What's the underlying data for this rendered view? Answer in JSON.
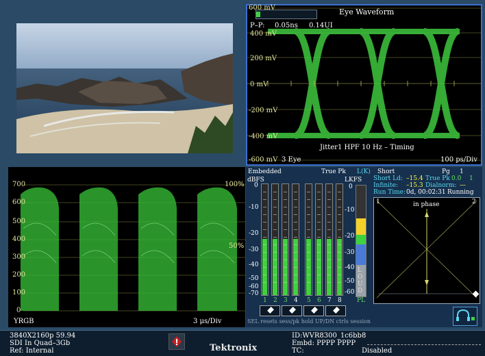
{
  "eye": {
    "title": "Eye Waveform",
    "pp_label": "P–P:",
    "pp_ns": "0.05ns",
    "pp_ui": "0.14UI",
    "y_labels": [
      "600 mV",
      "400 mV",
      "200 mV",
      "0 mV",
      "-200 mV",
      "-400 mV",
      "-600 mV"
    ],
    "filter": "Jitter1 HPF 10 Hz – Timing",
    "mode": "3 Eye",
    "timebase": "100 ps/Div"
  },
  "waveform": {
    "y_labels": [
      "700",
      "600",
      "500",
      "400",
      "300",
      "200",
      "100",
      "0"
    ],
    "pct_100": "100%",
    "pct_50": "50%",
    "mode": "YRGB",
    "timebase": "3 μs/Div"
  },
  "audio": {
    "source": "Embedded",
    "ballistic": "True Pk",
    "lk_label": "L(K):",
    "short_label": "Short",
    "dbfs_unit": "dBFS",
    "lkfs_unit": "LKFS",
    "dbfs_scale": [
      "0",
      "-10",
      "-20",
      "-30",
      "-40",
      "-50",
      "-60",
      "-70"
    ],
    "dbfs_extra": "-60",
    "lkfs_scale": [
      "0",
      "-10",
      "-20",
      "-30",
      "-40",
      "-50",
      "-60"
    ],
    "channels": [
      "1",
      "2",
      "3",
      "4",
      "5",
      "6",
      "7",
      "8"
    ],
    "pl_label": "PL",
    "loud_letters": [
      "L",
      "O",
      "U",
      "D"
    ],
    "footer": "SEL resets sess/pk hold  UP/DN ctrls session",
    "levels_pct": [
      0.5,
      0.5,
      0.5,
      0.5,
      0.5,
      0.5,
      0.5,
      0.5
    ]
  },
  "loudness": {
    "pg_label": "Pg",
    "pg_value": "1",
    "short_ld_label": "Short Ld:",
    "short_ld_value": "–15.4",
    "true_pk_label": "True Pk",
    "true_pk_value": "0.0",
    "true_pk_ch": "1",
    "infinite_label": "Infinite:",
    "infinite_value": "–15.3",
    "dialnorm_label": "Dialnorm:",
    "dialnorm_value": "—",
    "run_time_label": "Run Time:",
    "run_time_value": "0d, 00:02:31",
    "run_state": "Running",
    "phase_left": "1",
    "phase_right": "2",
    "phase_label": "in phase"
  },
  "status": {
    "format": "3840X2160p 59.94",
    "link": "SDI In Quad–3Gb",
    "ref": "Ref: Internal",
    "brand": "Tektronix",
    "id": "ID:WVR8300_1c6bb8",
    "embd": "Embd: PPPP PPPP",
    "tc_label": "TC:",
    "tc_value": "Disabled"
  },
  "colors": {
    "trace": "#3fd23f",
    "panel_bg": "#16304d",
    "border_active": "#3d6fd0",
    "graticule": "#d8d870"
  }
}
